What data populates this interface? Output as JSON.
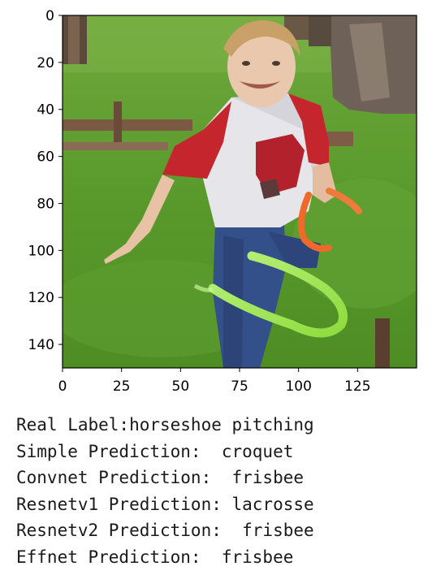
{
  "chart_data": {
    "type": "image",
    "description": "matplotlib imshow of a photo: boy in red and white shirt and jeans swinging legs with green and orange horseshoe rings on a grass lawn",
    "xlim": [
      0,
      150
    ],
    "ylim": [
      150,
      0
    ],
    "x_ticks": [
      0,
      25,
      50,
      75,
      100,
      125
    ],
    "y_ticks": [
      0,
      20,
      40,
      60,
      80,
      100,
      120,
      140
    ]
  },
  "output": {
    "lines": [
      "Real Label:horseshoe pitching",
      "Simple Prediction:  croquet",
      "Convnet Prediction:  frisbee",
      "Resnetv1 Prediction: lacrosse",
      "Resnetv2 Prediction:  frisbee",
      "Effnet Prediction:  frisbee"
    ]
  }
}
